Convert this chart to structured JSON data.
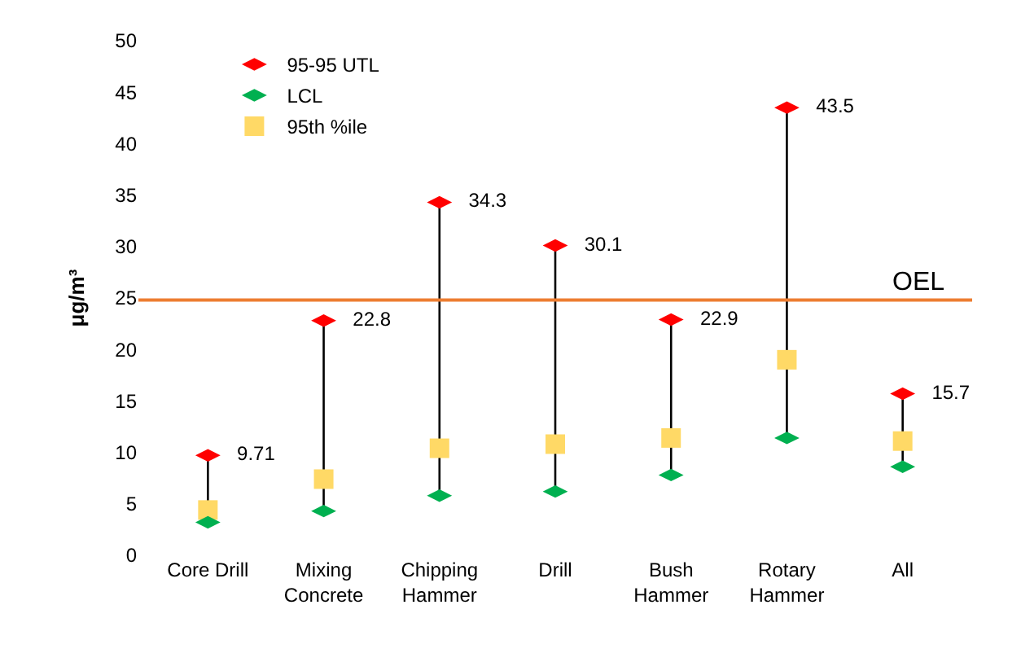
{
  "chart_data": {
    "type": "scatter",
    "ylabel": "μg/m³",
    "categories": [
      "Core Drill",
      "Mixing\nConcrete",
      "Chipping\nHammer",
      "Drill",
      "Bush\nHammer",
      "Rotary\nHammer",
      "All"
    ],
    "series": [
      {
        "name": "95-95 UTL",
        "color": "#ff0000",
        "values": [
          9.71,
          22.8,
          34.3,
          30.1,
          22.9,
          43.5,
          15.7
        ],
        "value_labels": [
          "9.71",
          "22.8",
          "34.3",
          "30.1",
          "22.9",
          "43.5",
          "15.7"
        ]
      },
      {
        "name": "LCL",
        "color": "#00b050",
        "values": [
          3.2,
          4.3,
          5.8,
          6.2,
          7.8,
          11.4,
          8.6
        ]
      },
      {
        "name": "95th %ile",
        "color": "#ffd966",
        "marker": "square",
        "values": [
          4.4,
          7.4,
          10.4,
          10.8,
          11.4,
          19.0,
          11.1
        ]
      }
    ],
    "ylim": [
      0,
      50
    ],
    "yticks": [
      0,
      5,
      10,
      15,
      20,
      25,
      30,
      35,
      40,
      45,
      50
    ],
    "ref_lines": [
      {
        "axis": "y",
        "value": 24.8,
        "label": "OEL",
        "color": "#ed7d31"
      }
    ],
    "legend": "top left"
  }
}
